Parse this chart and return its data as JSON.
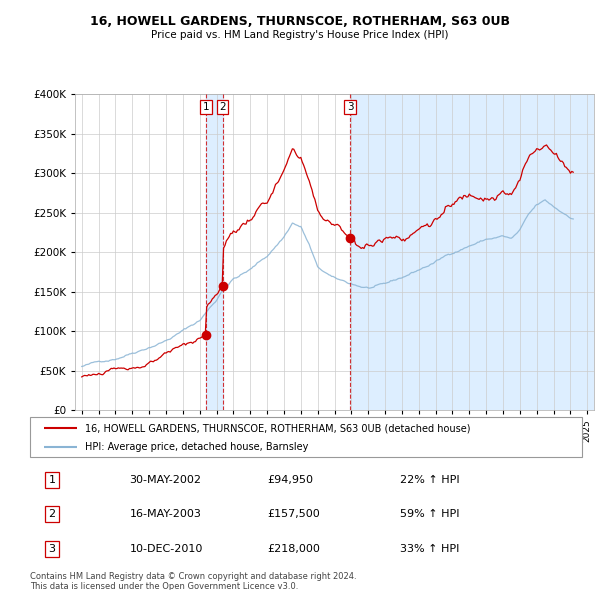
{
  "title": "16, HOWELL GARDENS, THURNSCOE, ROTHERHAM, S63 0UB",
  "subtitle": "Price paid vs. HM Land Registry's House Price Index (HPI)",
  "legend_line1": "16, HOWELL GARDENS, THURNSCOE, ROTHERHAM, S63 0UB (detached house)",
  "legend_line2": "HPI: Average price, detached house, Barnsley",
  "footer_line1": "Contains HM Land Registry data © Crown copyright and database right 2024.",
  "footer_line2": "This data is licensed under the Open Government Licence v3.0.",
  "sale_color": "#cc0000",
  "hpi_color": "#8ab4d4",
  "hpi_fill_color": "#ddeeff",
  "vline_color": "#cc0000",
  "ylim": [
    0,
    400000
  ],
  "yticks": [
    0,
    50000,
    100000,
    150000,
    200000,
    250000,
    300000,
    350000,
    400000
  ],
  "sales": [
    {
      "label": "1",
      "date": "30-MAY-2002",
      "price": 94950,
      "pct": "22%",
      "dir": "↑",
      "x": 2002.37
    },
    {
      "label": "2",
      "date": "16-MAY-2003",
      "price": 157500,
      "pct": "59%",
      "dir": "↑",
      "x": 2003.37
    },
    {
      "label": "3",
      "date": "10-DEC-2010",
      "price": 218000,
      "pct": "33%",
      "dir": "↑",
      "x": 2010.92
    }
  ],
  "table_rows": [
    [
      "1",
      "30-MAY-2002",
      "£94,950",
      "22% ↑ HPI"
    ],
    [
      "2",
      "16-MAY-2003",
      "£157,500",
      "59% ↑ HPI"
    ],
    [
      "3",
      "10-DEC-2010",
      "£218,000",
      "33% ↑ HPI"
    ]
  ],
  "xlim_left": 1994.6,
  "xlim_right": 2025.4,
  "xtick_years": [
    1995,
    1996,
    1997,
    1998,
    1999,
    2000,
    2001,
    2002,
    2003,
    2004,
    2005,
    2006,
    2007,
    2008,
    2009,
    2010,
    2011,
    2012,
    2013,
    2014,
    2015,
    2016,
    2017,
    2018,
    2019,
    2020,
    2021,
    2022,
    2023,
    2024,
    2025
  ]
}
